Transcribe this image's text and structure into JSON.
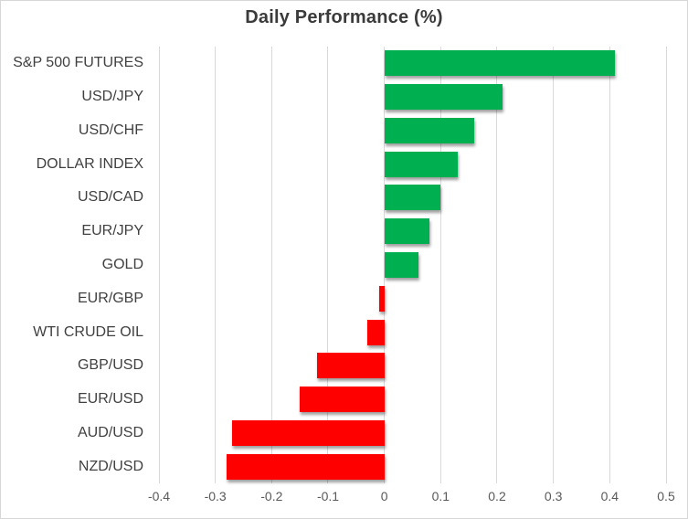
{
  "chart_data": {
    "type": "bar",
    "orientation": "horizontal",
    "title": "Daily Performance (%)",
    "categories": [
      "S&P 500 FUTURES",
      "USD/JPY",
      "USD/CHF",
      "DOLLAR INDEX",
      "USD/CAD",
      "EUR/JPY",
      "GOLD",
      "EUR/GBP",
      "WTI CRUDE OIL",
      "GBP/USD",
      "EUR/USD",
      "AUD/USD",
      "NZD/USD"
    ],
    "values": [
      0.41,
      0.21,
      0.16,
      0.13,
      0.1,
      0.08,
      0.06,
      -0.01,
      -0.03,
      -0.12,
      -0.15,
      -0.27,
      -0.28
    ],
    "xlabel": "",
    "ylabel": "",
    "xlim": [
      -0.4,
      0.5
    ],
    "grid": true,
    "legend": false,
    "ticks": [
      {
        "value": -0.4,
        "label": "-0.4"
      },
      {
        "value": -0.3,
        "label": "-0.3"
      },
      {
        "value": -0.2,
        "label": "-0.2"
      },
      {
        "value": -0.1,
        "label": "-0.1"
      },
      {
        "value": 0,
        "label": "0"
      },
      {
        "value": 0.1,
        "label": "0.1"
      },
      {
        "value": 0.2,
        "label": "0.2"
      },
      {
        "value": 0.3,
        "label": "0.3"
      },
      {
        "value": 0.4,
        "label": "0.4"
      },
      {
        "value": 0.5,
        "label": "0.5"
      }
    ],
    "colors": {
      "positive": "#00B050",
      "negative": "#FF0000",
      "gridline": "#D9D9D9",
      "title_text": "#3B3B3B",
      "category_text": "#404040",
      "tick_text": "#595959",
      "border": "#D7D7D7",
      "background": "#FFFFFF"
    }
  }
}
